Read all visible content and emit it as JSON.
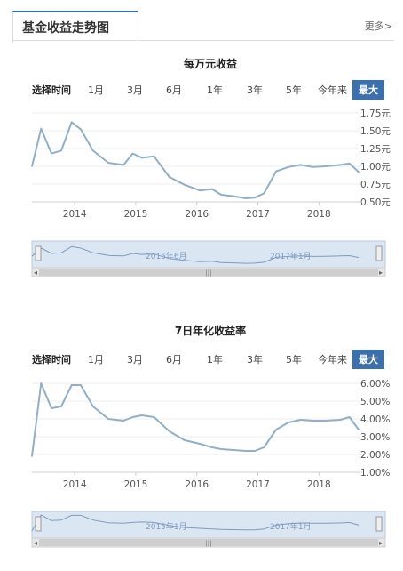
{
  "header": {
    "title": "基金收益走势图",
    "more": "更多>"
  },
  "ranges": {
    "label": "选择时间",
    "buttons": [
      "1月",
      "3月",
      "6月",
      "1年",
      "3年",
      "5年",
      "今年来",
      "最大"
    ],
    "active": "最大"
  },
  "colors": {
    "line": "#8fb0c8",
    "accent": "#3a6fb0",
    "navigator_fill": "#dbe6f3"
  },
  "chart_data": [
    {
      "type": "line",
      "title": "每万元收益",
      "xlabel": "",
      "ylabel": "",
      "x_ticks": [
        "2014",
        "2015",
        "2016",
        "2017",
        "2018"
      ],
      "y_ticks": [
        "1.75元",
        "1.50元",
        "1.25元",
        "1.00元",
        "0.75元",
        "0.50元"
      ],
      "ylim": [
        0.5,
        1.75
      ],
      "xlim": [
        2013.3,
        2018.65
      ],
      "series": [
        {
          "points": [
            [
              2013.3,
              1.0
            ],
            [
              2013.45,
              1.53
            ],
            [
              2013.62,
              1.18
            ],
            [
              2013.78,
              1.22
            ],
            [
              2013.95,
              1.62
            ],
            [
              2014.1,
              1.52
            ],
            [
              2014.3,
              1.22
            ],
            [
              2014.55,
              1.05
            ],
            [
              2014.8,
              1.02
            ],
            [
              2014.95,
              1.18
            ],
            [
              2015.1,
              1.12
            ],
            [
              2015.3,
              1.14
            ],
            [
              2015.55,
              0.85
            ],
            [
              2015.8,
              0.74
            ],
            [
              2016.05,
              0.66
            ],
            [
              2016.25,
              0.68
            ],
            [
              2016.4,
              0.6
            ],
            [
              2016.6,
              0.58
            ],
            [
              2016.8,
              0.55
            ],
            [
              2016.95,
              0.56
            ],
            [
              2017.1,
              0.62
            ],
            [
              2017.3,
              0.93
            ],
            [
              2017.5,
              0.99
            ],
            [
              2017.7,
              1.02
            ],
            [
              2017.9,
              0.99
            ],
            [
              2018.1,
              1.0
            ],
            [
              2018.35,
              1.02
            ],
            [
              2018.5,
              1.04
            ],
            [
              2018.65,
              0.92
            ]
          ]
        }
      ],
      "navigator_labels": [
        "2015年6月",
        "2017年1月"
      ],
      "navigator_scroll": "|||"
    },
    {
      "type": "line",
      "title": "7日年化收益率",
      "xlabel": "",
      "ylabel": "",
      "x_ticks": [
        "2014",
        "2015",
        "2016",
        "2017",
        "2018"
      ],
      "y_ticks": [
        "6.00%",
        "5.00%",
        "4.00%",
        "3.00%",
        "2.00%",
        "1.00%"
      ],
      "ylim": [
        1.0,
        6.0
      ],
      "xlim": [
        2013.3,
        2018.65
      ],
      "series": [
        {
          "points": [
            [
              2013.3,
              1.9
            ],
            [
              2013.45,
              6.0
            ],
            [
              2013.62,
              4.6
            ],
            [
              2013.78,
              4.7
            ],
            [
              2013.95,
              5.9
            ],
            [
              2014.1,
              5.9
            ],
            [
              2014.3,
              4.7
            ],
            [
              2014.55,
              4.0
            ],
            [
              2014.8,
              3.9
            ],
            [
              2014.95,
              4.1
            ],
            [
              2015.1,
              4.2
            ],
            [
              2015.3,
              4.1
            ],
            [
              2015.55,
              3.3
            ],
            [
              2015.8,
              2.8
            ],
            [
              2016.05,
              2.6
            ],
            [
              2016.25,
              2.4
            ],
            [
              2016.4,
              2.3
            ],
            [
              2016.6,
              2.25
            ],
            [
              2016.8,
              2.2
            ],
            [
              2016.95,
              2.2
            ],
            [
              2017.1,
              2.4
            ],
            [
              2017.3,
              3.4
            ],
            [
              2017.5,
              3.8
            ],
            [
              2017.7,
              3.95
            ],
            [
              2017.9,
              3.9
            ],
            [
              2018.1,
              3.9
            ],
            [
              2018.35,
              3.95
            ],
            [
              2018.5,
              4.1
            ],
            [
              2018.65,
              3.4
            ]
          ]
        }
      ],
      "navigator_labels": [
        "2015年1月",
        "2017年1月"
      ],
      "navigator_scroll": "|||"
    }
  ]
}
